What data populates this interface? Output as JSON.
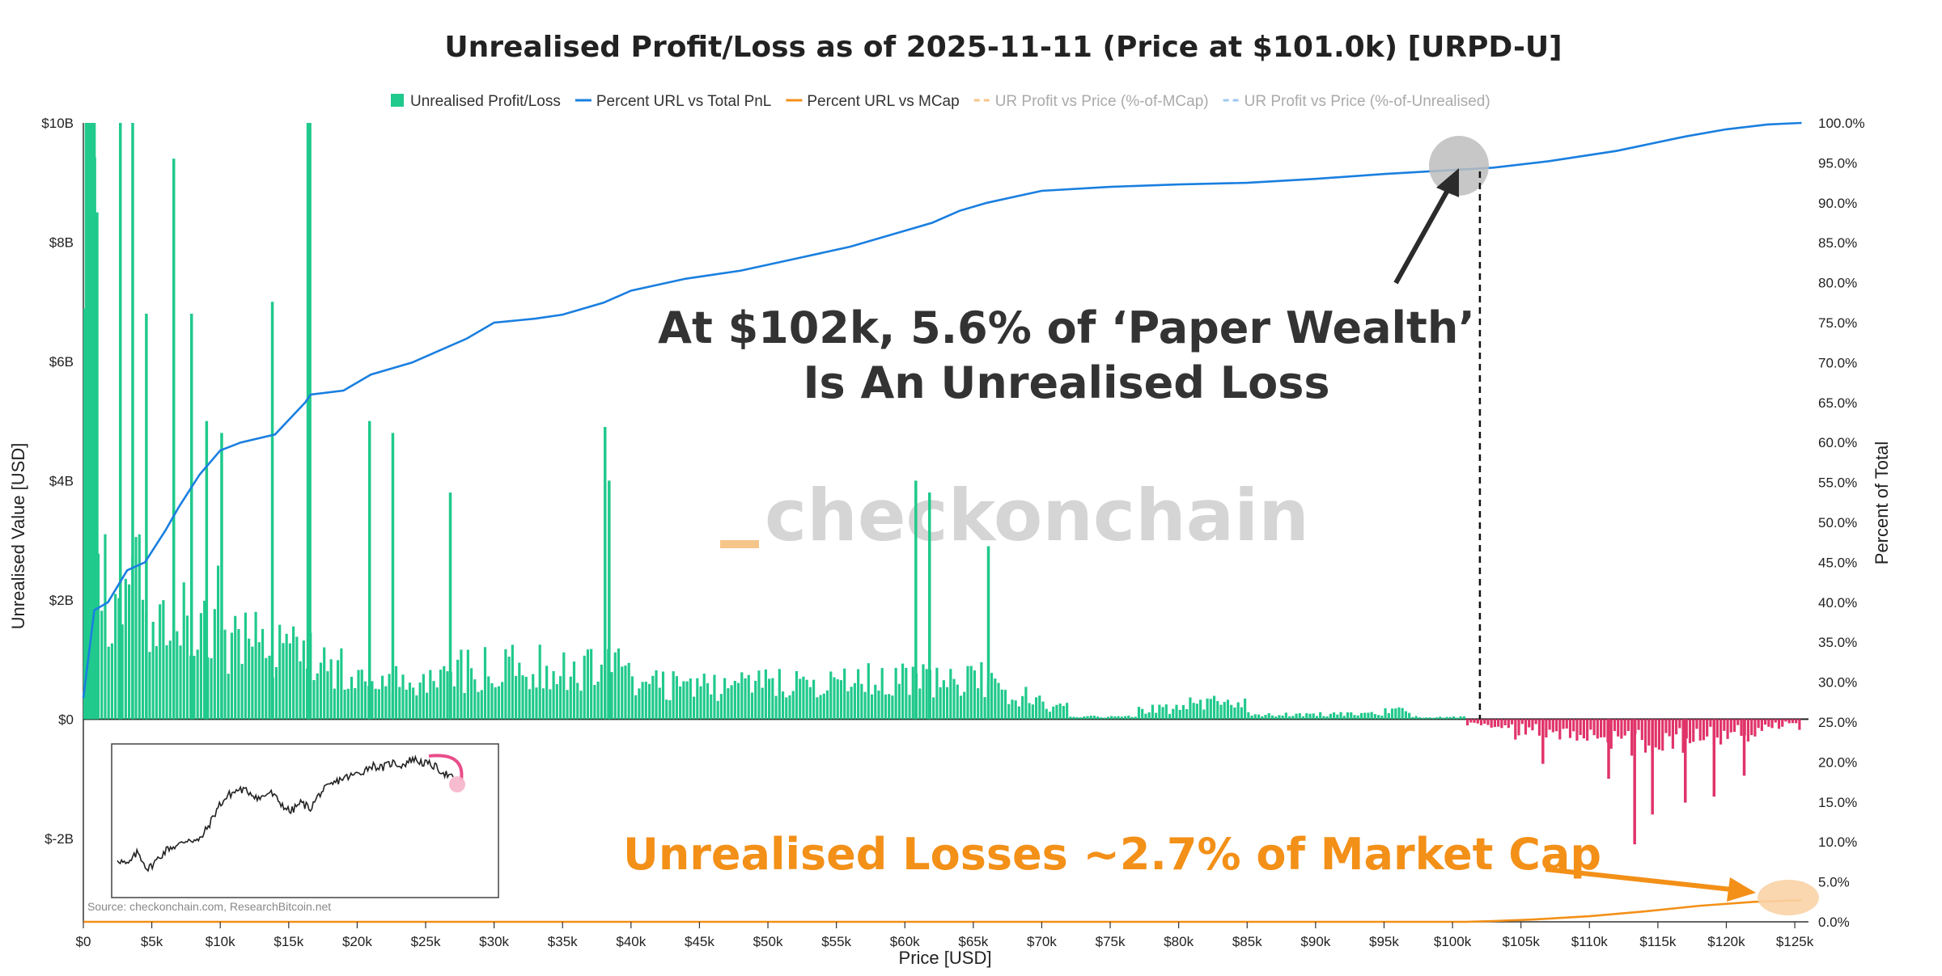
{
  "chart_data": {
    "type": "bar",
    "title": "Unrealised Profit/Loss as of 2025-11-11 (Price at $101.0k) [URPD-U]",
    "xlabel": "Price [USD]",
    "ylabel": "Unrealised Value [USD]",
    "y2label": "Percent of Total",
    "xlim": [
      0,
      126000
    ],
    "ylim": [
      -3400000000,
      10000000000
    ],
    "y2lim": [
      0,
      100
    ],
    "x_ticks": [
      "$0",
      "$5k",
      "$10k",
      "$15k",
      "$20k",
      "$25k",
      "$30k",
      "$35k",
      "$40k",
      "$45k",
      "$50k",
      "$55k",
      "$60k",
      "$65k",
      "$70k",
      "$75k",
      "$80k",
      "$85k",
      "$90k",
      "$95k",
      "$100k",
      "$105k",
      "$110k",
      "$115k",
      "$120k",
      "$125k"
    ],
    "y_ticks": [
      {
        "value": 10000000000,
        "label": "$10B"
      },
      {
        "value": 8000000000,
        "label": "$8B"
      },
      {
        "value": 6000000000,
        "label": "$6B"
      },
      {
        "value": 4000000000,
        "label": "$4B"
      },
      {
        "value": 2000000000,
        "label": "$2B"
      },
      {
        "value": 0,
        "label": "$0"
      },
      {
        "value": -2000000000,
        "label": "$-2B"
      }
    ],
    "y2_ticks": [
      "100.0%",
      "95.0%",
      "90.0%",
      "85.0%",
      "80.0%",
      "75.0%",
      "70.0%",
      "65.0%",
      "60.0%",
      "55.0%",
      "50.0%",
      "45.0%",
      "40.0%",
      "35.0%",
      "30.0%",
      "25.0%",
      "20.0%",
      "15.0%",
      "10.0%",
      "5.0%",
      "0.0%"
    ],
    "current_price": 101000,
    "annotation_price": 102000,
    "legend": [
      {
        "label": "Unrealised Profit/Loss",
        "color": "#20c98c",
        "kind": "square"
      },
      {
        "label": "Percent URL vs Total PnL",
        "color": "#1a7fe0",
        "kind": "line"
      },
      {
        "label": "Percent URL vs MCap",
        "color": "#f39018",
        "kind": "line"
      },
      {
        "label": "UR Profit vs Price (%-of-MCap)",
        "color": "#f6c58a",
        "kind": "dash"
      },
      {
        "label": "UR Profit vs Price (%-of-Unrealised)",
        "color": "#9ec8ef",
        "kind": "dash"
      }
    ],
    "colors": {
      "profit": "#20c98c",
      "loss": "#e0336a",
      "total_pnl_line": "#1a7fe0",
      "mcap_line": "#f39018"
    },
    "spikes_profit": [
      {
        "x": 100,
        "v": 10000000000
      },
      {
        "x": 200,
        "v": 10000000000
      },
      {
        "x": 300,
        "v": 10000000000
      },
      {
        "x": 400,
        "v": 10000000000
      },
      {
        "x": 500,
        "v": 10000000000
      },
      {
        "x": 700,
        "v": 10000000000
      },
      {
        "x": 900,
        "v": 8500000000
      },
      {
        "x": 2600,
        "v": 10000000000
      },
      {
        "x": 3500,
        "v": 10000000000
      },
      {
        "x": 4500,
        "v": 6800000000
      },
      {
        "x": 6500,
        "v": 9400000000
      },
      {
        "x": 7800,
        "v": 6800000000
      },
      {
        "x": 8900,
        "v": 5000000000
      },
      {
        "x": 10000,
        "v": 4800000000
      },
      {
        "x": 13700,
        "v": 7000000000
      },
      {
        "x": 16300,
        "v": 10000000000
      },
      {
        "x": 16450,
        "v": 10000000000
      },
      {
        "x": 20800,
        "v": 5000000000
      },
      {
        "x": 22500,
        "v": 4800000000
      },
      {
        "x": 26700,
        "v": 3800000000
      },
      {
        "x": 38000,
        "v": 4900000000
      },
      {
        "x": 38300,
        "v": 4000000000
      },
      {
        "x": 60700,
        "v": 4000000000
      },
      {
        "x": 61700,
        "v": 3800000000
      },
      {
        "x": 66000,
        "v": 2900000000
      }
    ],
    "spikes_loss": [
      {
        "x": 113200,
        "v": -2100000000
      },
      {
        "x": 111300,
        "v": -1000000000
      },
      {
        "x": 114500,
        "v": -1600000000
      },
      {
        "x": 116900,
        "v": -1400000000
      },
      {
        "x": 119000,
        "v": -1300000000
      },
      {
        "x": 121200,
        "v": -950000000
      },
      {
        "x": 106500,
        "v": -750000000
      }
    ],
    "percent_url_vs_total_pnl": {
      "x": [
        0,
        800,
        1800,
        3200,
        4500,
        6000,
        7000,
        8500,
        10000,
        11500,
        14000,
        16200,
        16600,
        19000,
        21000,
        24000,
        26000,
        28000,
        30000,
        33000,
        35000,
        38000,
        40000,
        44000,
        48000,
        52000,
        56000,
        60000,
        62000,
        64000,
        66000,
        70000,
        75000,
        80000,
        85000,
        90000,
        95000,
        101000,
        103000,
        107000,
        112000,
        117000,
        120000,
        123000,
        125500
      ],
      "y": [
        28,
        39,
        40,
        44,
        45,
        49,
        52,
        56,
        59,
        60,
        61,
        65,
        66,
        66.5,
        68.5,
        70,
        71.5,
        73,
        75,
        75.5,
        76,
        77.5,
        79,
        80.5,
        81.5,
        83,
        84.5,
        86.5,
        87.5,
        89,
        90,
        91.5,
        92,
        92.3,
        92.5,
        93,
        93.6,
        94.2,
        94.4,
        95.2,
        96.5,
        98.3,
        99.2,
        99.8,
        100
      ]
    },
    "percent_url_vs_mcap": {
      "x": [
        0,
        100000,
        101000,
        103000,
        106000,
        110000,
        114000,
        118000,
        122000,
        125500
      ],
      "y": [
        0,
        0,
        0,
        0.1,
        0.3,
        0.7,
        1.3,
        2.0,
        2.5,
        2.7
      ]
    },
    "inset_price_series": [
      0.2,
      0.15,
      0.25,
      0.12,
      0.2,
      0.28,
      0.3,
      0.35,
      0.33,
      0.45,
      0.6,
      0.68,
      0.72,
      0.7,
      0.65,
      0.7,
      0.62,
      0.55,
      0.62,
      0.58,
      0.7,
      0.75,
      0.8,
      0.82,
      0.85,
      0.9,
      0.88,
      0.92,
      0.9,
      0.95,
      0.92,
      0.9,
      0.85,
      0.8
    ]
  },
  "annotations": {
    "paper_wealth_line1": "At $102k, 5.6% of ‘Paper Wealth’",
    "paper_wealth_line2": "Is An Unrealised Loss",
    "market_cap": "Unrealised Losses ~2.7% of Market Cap",
    "watermark": "checkonchain",
    "source": "Source: checkonchain.com, ResearchBitcoin.net"
  }
}
